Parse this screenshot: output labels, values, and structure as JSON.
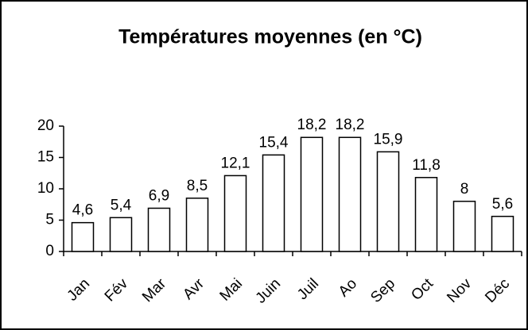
{
  "chart_data": {
    "type": "bar",
    "title": "Températures moyennes (en °C)",
    "categories": [
      "Jan",
      "Fév",
      "Mar",
      "Avr",
      "Mai",
      "Juin",
      "Juil",
      "Ao",
      "Sep",
      "Oct",
      "Nov",
      "Déc"
    ],
    "values": [
      4.6,
      5.4,
      6.9,
      8.5,
      12.1,
      15.4,
      18.2,
      18.2,
      15.9,
      11.8,
      8,
      5.6
    ],
    "value_labels": [
      "4,6",
      "5,4",
      "6,9",
      "8,5",
      "12,1",
      "15,4",
      "18,2",
      "18,2",
      "15,9",
      "11,8",
      "8",
      "5,6"
    ],
    "color": "#ffffff",
    "ylim": [
      0,
      20
    ],
    "yticks": [
      0,
      5,
      10,
      15,
      20
    ],
    "grid": false
  }
}
